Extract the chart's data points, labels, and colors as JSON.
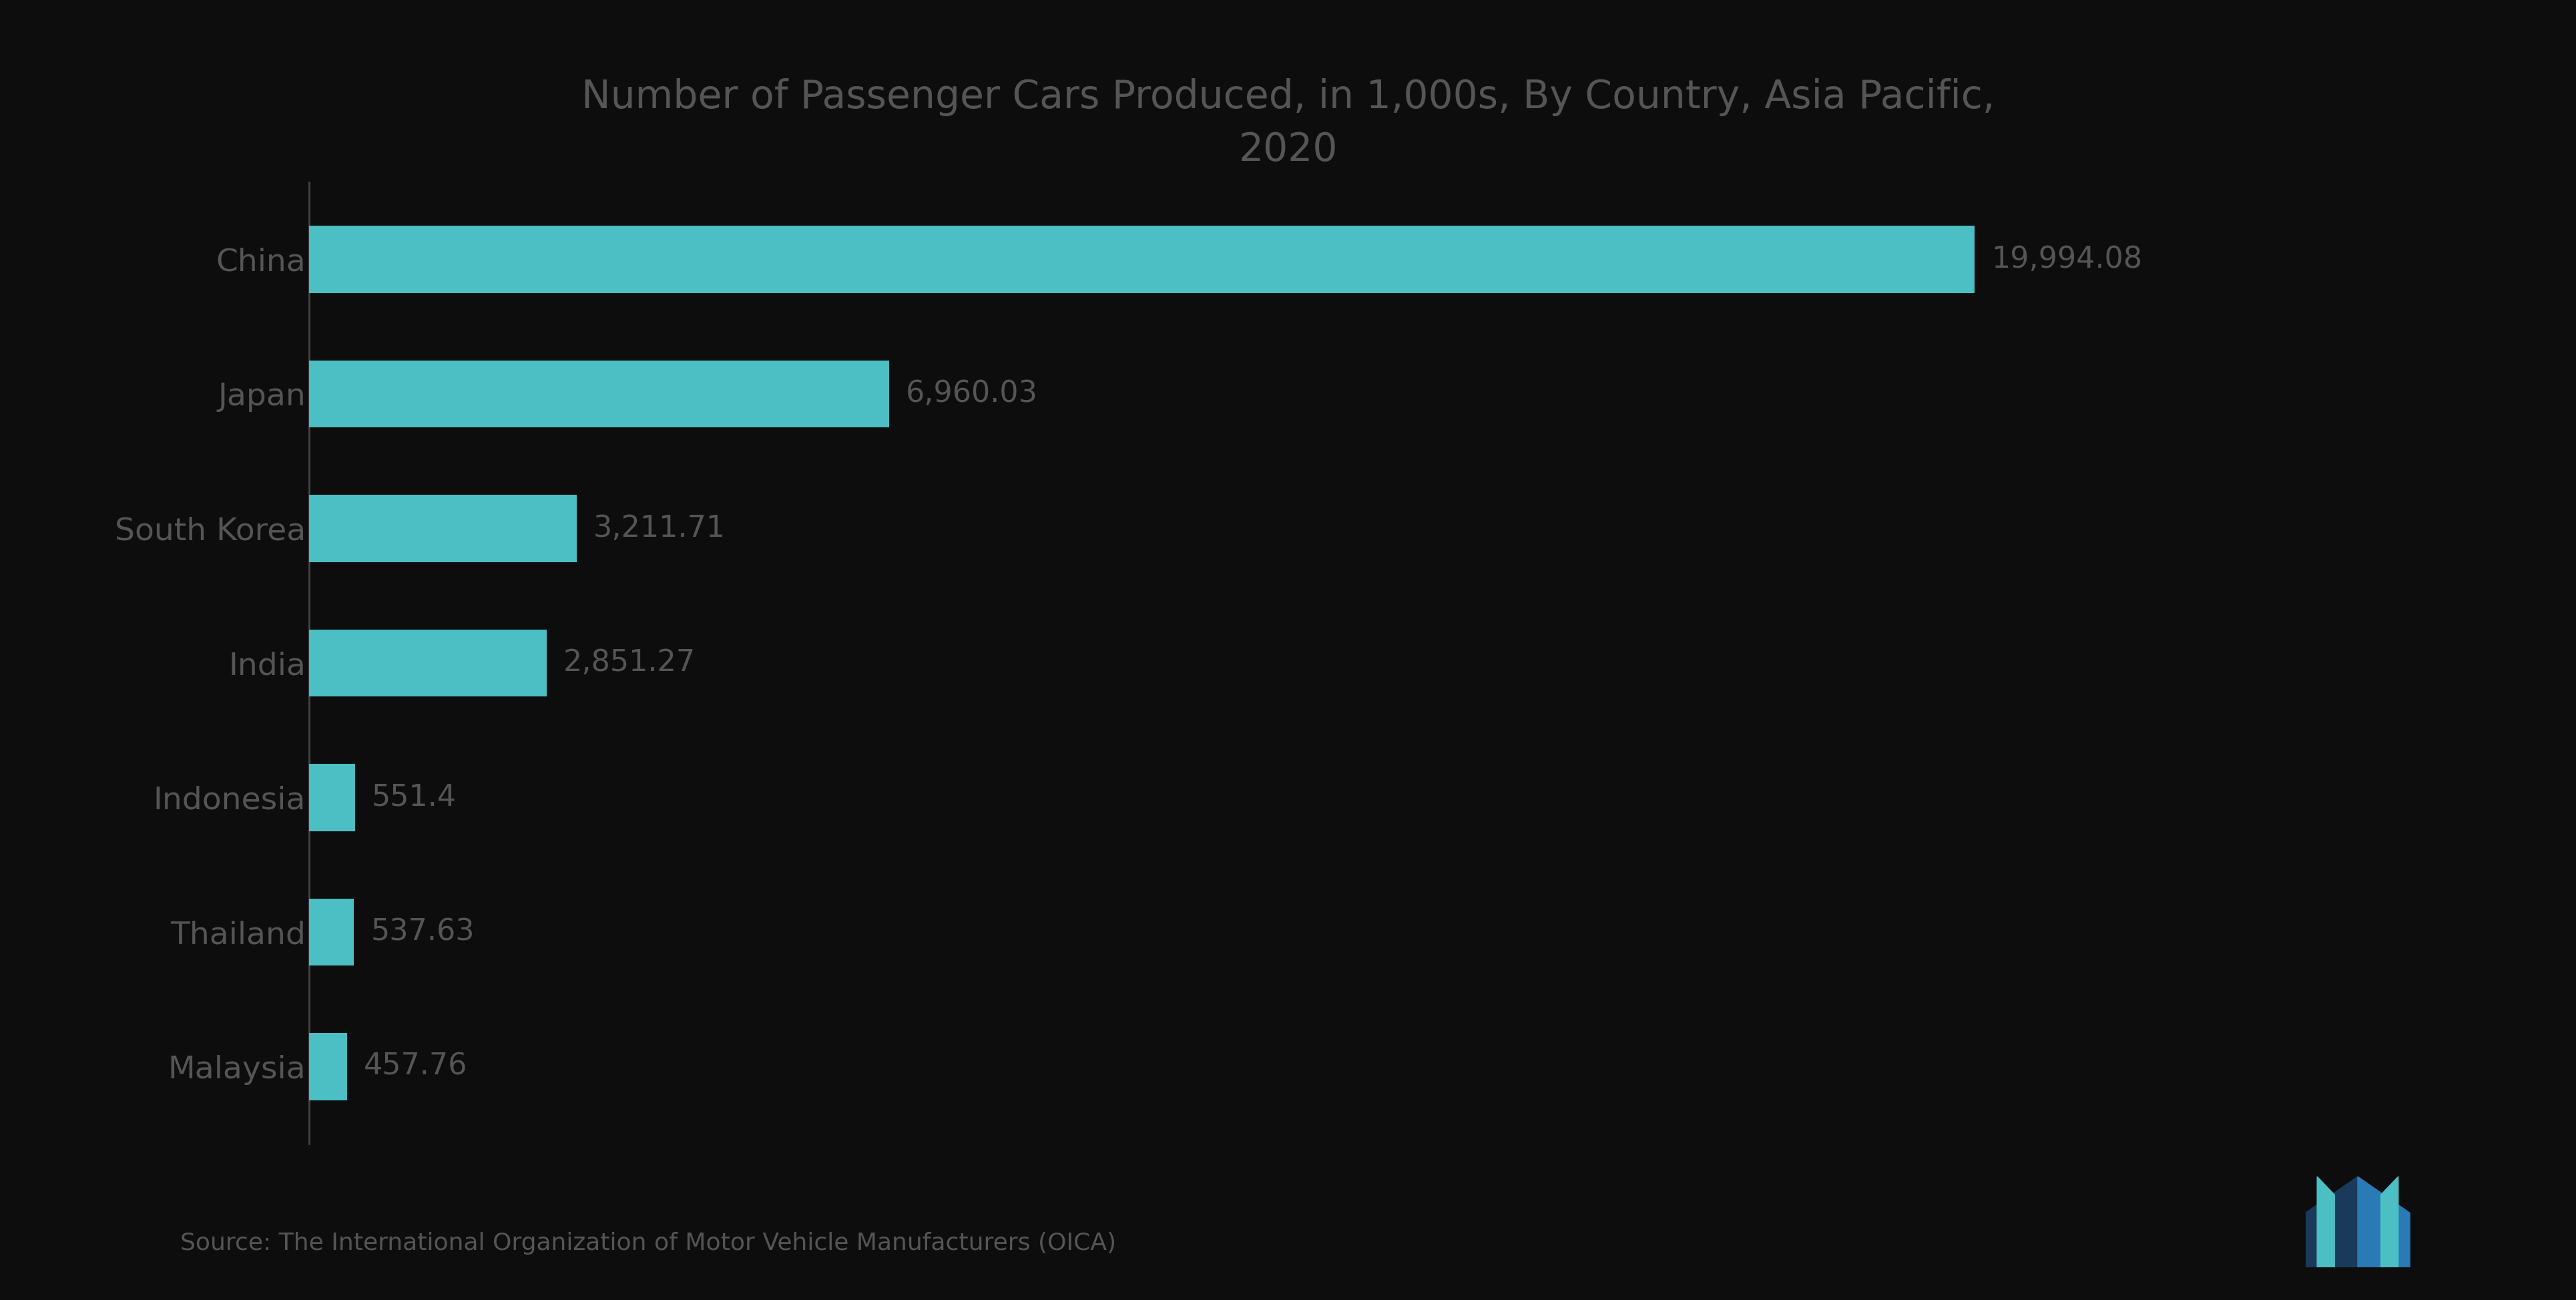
{
  "title": "Number of Passenger Cars Produced, in 1,000s, By Country, Asia Pacific,\n2020",
  "categories": [
    "China",
    "Japan",
    "South Korea",
    "India",
    "Indonesia",
    "Thailand",
    "Malaysia"
  ],
  "values": [
    19994.08,
    6960.03,
    3211.71,
    2851.27,
    551.4,
    537.63,
    457.76
  ],
  "labels": [
    "19,994.08",
    "6,960.03",
    "3,211.71",
    "2,851.27",
    "551.4",
    "537.63",
    "457.76"
  ],
  "bar_color": "#4BBFC3",
  "background_color": "#0d0d0d",
  "text_color": "#555555",
  "title_color": "#555555",
  "label_color": "#555555",
  "source_text": "Source: The International Organization of Motor Vehicle Manufacturers (OICA)",
  "spine_color": "#444444",
  "title_fontsize": 42,
  "label_fontsize": 32,
  "category_fontsize": 34,
  "source_fontsize": 26,
  "bar_height": 0.5,
  "xlim": 23500,
  "logo_color1": "#1a3a5c",
  "logo_color2": "#2a7ab5",
  "logo_color3": "#4BBFC3"
}
